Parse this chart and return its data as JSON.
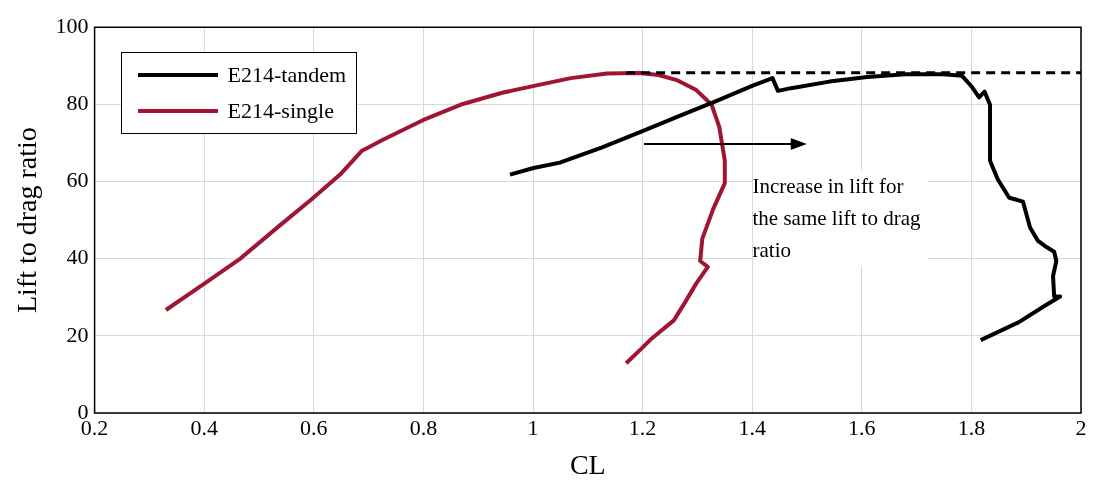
{
  "chart_data": {
    "type": "line",
    "xlabel": "CL",
    "ylabel": "Lift to drag ratio",
    "xlim": [
      0.2,
      2
    ],
    "xticks": [
      0.2,
      0.4,
      0.6,
      0.8,
      1,
      1.2,
      1.4,
      1.6,
      1.8,
      2
    ],
    "ylim": [
      0,
      100
    ],
    "yticks": [
      0,
      20,
      40,
      60,
      80,
      100
    ],
    "grid": true,
    "legend": "top left",
    "marker": "none",
    "annotations": [
      "Increase in lift for the same lift to drag ratio"
    ],
    "series": [
      {
        "color": "#000000",
        "line_style": "dashed",
        "x": [
          1.17,
          2
        ],
        "values": [
          88.2,
          88.2
        ]
      },
      {
        "name": "E214-tandem",
        "color": "#000000",
        "line_style": "solid",
        "x": [
          0.958,
          1.001,
          1.049,
          1.125,
          1.201,
          1.264,
          1.333,
          1.402,
          1.437,
          1.447,
          1.471,
          1.541,
          1.61,
          1.679,
          1.748,
          1.783,
          1.8,
          1.814,
          1.824,
          1.834,
          1.834,
          1.848,
          1.869,
          1.894,
          1.907,
          1.921,
          1.934,
          1.951,
          1.955,
          1.949,
          1.951,
          1.962,
          1.934,
          1.886,
          1.817
        ],
        "values": [
          61.8,
          63.5,
          64.9,
          68.8,
          73.1,
          76.8,
          80.8,
          84.9,
          86.8,
          83.5,
          84.2,
          85.9,
          87.1,
          87.8,
          87.8,
          87.4,
          84.7,
          81.8,
          83.3,
          79.9,
          65.4,
          60.6,
          55.8,
          54.8,
          48.1,
          44.7,
          43.3,
          41.8,
          39.4,
          35.5,
          30.2,
          30.2,
          27.8,
          23.5,
          18.9
        ]
      },
      {
        "name": "E214-single",
        "color": "#a01434",
        "line_style": "solid",
        "x": [
          0.33,
          0.399,
          0.464,
          0.537,
          0.596,
          0.648,
          0.688,
          0.727,
          0.799,
          0.872,
          0.944,
          1.002,
          1.069,
          1.135,
          1.194,
          1.229,
          1.264,
          1.298,
          1.326,
          1.34,
          1.35,
          1.35,
          1.329,
          1.309,
          1.305,
          1.319,
          1.298,
          1.278,
          1.257,
          1.215,
          1.195,
          1.17
        ],
        "values": [
          26.7,
          33.4,
          39.8,
          48.5,
          55.4,
          61.8,
          68,
          70.9,
          75.9,
          80.1,
          83,
          84.8,
          86.8,
          88,
          88.1,
          87.6,
          86.2,
          83.7,
          79.9,
          74.1,
          65.4,
          59.6,
          52.9,
          45.2,
          39.4,
          37.9,
          33.6,
          28.8,
          24,
          19.1,
          16.3,
          12.9
        ]
      }
    ]
  }
}
